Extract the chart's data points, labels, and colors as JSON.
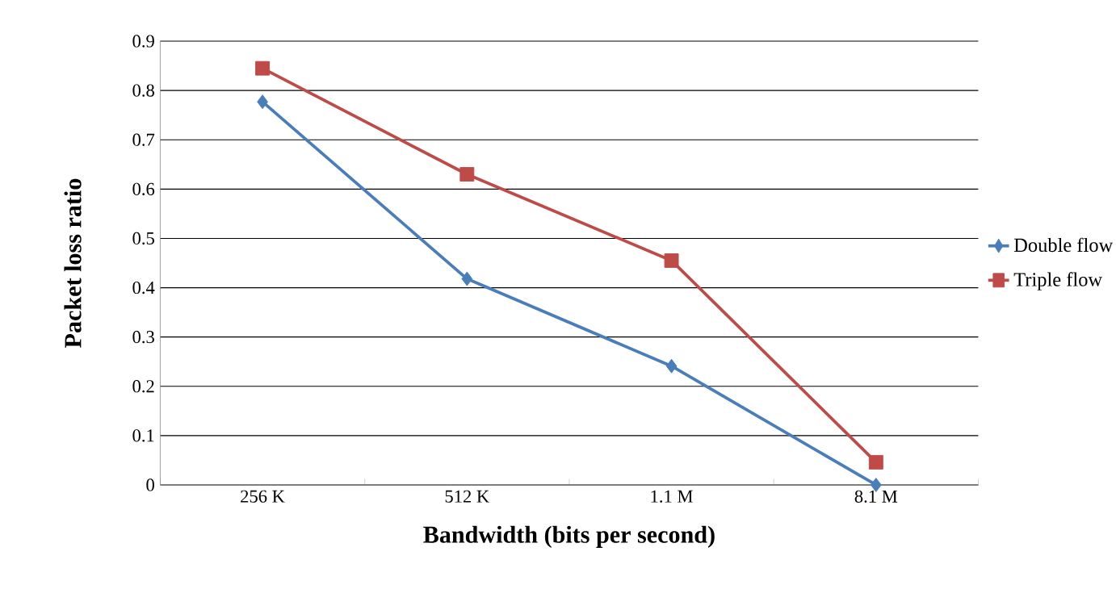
{
  "chart_data": {
    "type": "line",
    "xlabel": "Bandwidth (bits per second)",
    "ylabel": "Packet loss ratio",
    "categories": [
      "256 K",
      "512 K",
      "1.1 M",
      "8.1 M"
    ],
    "series": [
      {
        "name": "Double flow",
        "color": "#4a7ebb",
        "marker": "diamond",
        "values": [
          0.777,
          0.418,
          0.241,
          0.0
        ]
      },
      {
        "name": "Triple flow",
        "color": "#be4b48",
        "marker": "square",
        "values": [
          0.845,
          0.63,
          0.455,
          0.046
        ]
      }
    ],
    "ylim": [
      0,
      0.9
    ],
    "yticks": [
      0,
      0.1,
      0.2,
      0.3,
      0.4,
      0.5,
      0.6,
      0.7,
      0.8,
      0.9
    ],
    "grid": "y",
    "legend": "right",
    "line_style": "solid"
  }
}
